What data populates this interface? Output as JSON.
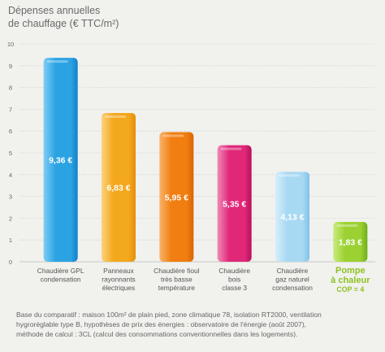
{
  "chart_data": {
    "type": "bar",
    "title_lines": [
      "Dépenses annuelles",
      "de chauffage (€ TTC/m²)"
    ],
    "ylim": [
      0,
      10
    ],
    "yticks": [
      "0",
      "1",
      "2",
      "3",
      "4",
      "5",
      "6",
      "7",
      "8",
      "9",
      "10"
    ],
    "grid": true,
    "legend": "none",
    "categories": [
      {
        "lines": [
          "Chaudière GPL",
          "condensation"
        ],
        "highlight": false
      },
      {
        "lines": [
          "Panneaux",
          "rayonnants",
          "électriques"
        ],
        "highlight": false
      },
      {
        "lines": [
          "Chaudière fioul",
          "très basse",
          "température"
        ],
        "highlight": false
      },
      {
        "lines": [
          "Chaudière",
          "bois",
          "classe 3"
        ],
        "highlight": false
      },
      {
        "lines": [
          "Chaudière",
          "gaz naturel",
          "condensation"
        ],
        "highlight": false
      },
      {
        "lines": [
          "Pompe",
          "à chaleur",
          "COP = 4"
        ],
        "highlight": true
      }
    ],
    "values": [
      9.36,
      6.83,
      5.95,
      5.35,
      4.13,
      1.83
    ],
    "data_labels": [
      "9,36 €",
      "6,83 €",
      "5,95 €",
      "5,35 €",
      "4,13 €",
      "1,83 €"
    ],
    "colors": [
      {
        "light": "#7fcdf3",
        "main": "#2ba3e3",
        "dark": "#1280c6"
      },
      {
        "light": "#fbd27a",
        "main": "#f4a81e",
        "dark": "#e58c0d"
      },
      {
        "light": "#fbb36a",
        "main": "#f07e10",
        "dark": "#d96506"
      },
      {
        "light": "#f08ab7",
        "main": "#e02778",
        "dark": "#b8105a"
      },
      {
        "light": "#d6eefb",
        "main": "#a8d9f3",
        "dark": "#7fc3ea"
      },
      {
        "light": "#c8ec7a",
        "main": "#9bd132",
        "dark": "#6fae1a"
      }
    ],
    "highlight_color": "#8dc21f"
  },
  "footnote": [
    "Base du comparatif : maison 100m² de plain pied, zone climatique 78, isolation RT2000, ventilation",
    "hygroréglable type B, hypothèses de prix des énergies : observatoire de l'énergie (août 2007),",
    "méthode de calcul : 3CL (calcul des consommations conventionnelles dans les logements)."
  ]
}
